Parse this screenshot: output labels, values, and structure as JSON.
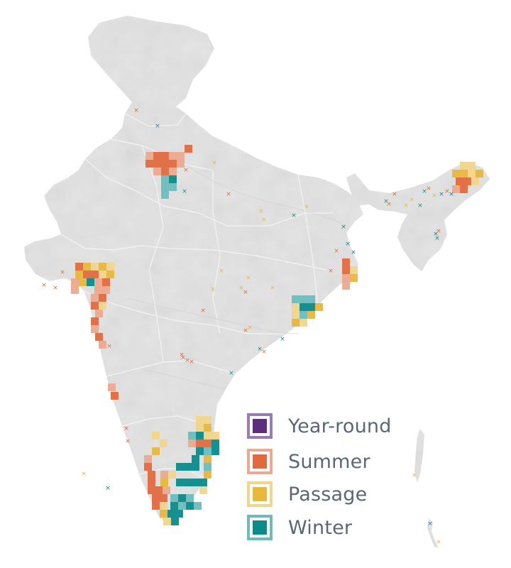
{
  "colors": {
    "land": "#e3e3e3",
    "land_shade": "#d7d7d7",
    "border": "#f6f6f6",
    "year_round": "#5c2c7e",
    "year_round_light": "#9a7bb5",
    "summer": "#e2693f",
    "summer_light": "#eca98f",
    "passage": "#e8b73c",
    "passage_light": "#f0d58a",
    "winter": "#0d8a8a",
    "winter_light": "#6dbcbc",
    "legend_text": "#5a6776"
  },
  "legend": {
    "items": [
      {
        "key": "year_round",
        "label": "Year-round"
      },
      {
        "key": "summer",
        "label": "Summer"
      },
      {
        "key": "passage",
        "label": "Passage"
      },
      {
        "key": "winter",
        "label": "Winter"
      }
    ]
  }
}
